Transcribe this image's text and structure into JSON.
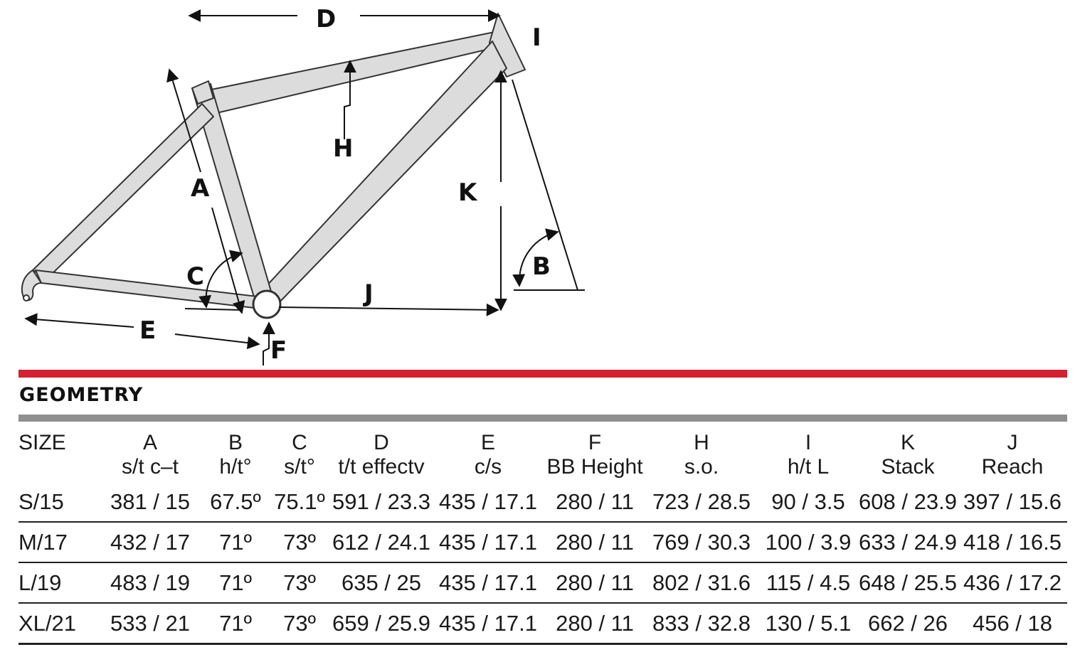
{
  "diagram": {
    "labels": {
      "A": "A",
      "B": "B",
      "C": "C",
      "D": "D",
      "E": "E",
      "F": "F",
      "H": "H",
      "I": "I",
      "J": "J",
      "K": "K"
    }
  },
  "section_title": "GEOMETRY",
  "colors": {
    "red_rule": "#d42030",
    "gray_rule": "#8f8f8f",
    "frame_fill": "#dcdcdc",
    "frame_stroke": "#333333"
  },
  "table": {
    "headers": [
      {
        "top": "SIZE",
        "bottom": ""
      },
      {
        "top": "A",
        "bottom": "s/t c–t"
      },
      {
        "top": "B",
        "bottom": "h/t°"
      },
      {
        "top": "C",
        "bottom": "s/t°"
      },
      {
        "top": "D",
        "bottom": "t/t effectv"
      },
      {
        "top": "E",
        "bottom": "c/s"
      },
      {
        "top": "F",
        "bottom": "BB Height"
      },
      {
        "top": "H",
        "bottom": "s.o."
      },
      {
        "top": "I",
        "bottom": "h/t L"
      },
      {
        "top": "K",
        "bottom": "Stack"
      },
      {
        "top": "J",
        "bottom": "Reach"
      }
    ],
    "rows": [
      [
        "S/15",
        "381 / 15",
        "67.5º",
        "75.1º",
        "591 / 23.3",
        "435 / 17.1",
        "280 / 11",
        "723 / 28.5",
        "90 / 3.5",
        "608 / 23.9",
        "397 / 15.6"
      ],
      [
        "M/17",
        "432 / 17",
        "71º",
        "73º",
        "612 / 24.1",
        "435 / 17.1",
        "280 / 11",
        "769 / 30.3",
        "100 / 3.9",
        "633 / 24.9",
        "418 / 16.5"
      ],
      [
        "L/19",
        "483 / 19",
        "71º",
        "73º",
        "635 / 25",
        "435 / 17.1",
        "280 / 11",
        "802 / 31.6",
        "115 / 4.5",
        "648 / 25.5",
        "436 / 17.2"
      ],
      [
        "XL/21",
        "533 / 21",
        "71º",
        "73º",
        "659 / 25.9",
        "435 / 17.1",
        "280 / 11",
        "833 / 32.8",
        "130 / 5.1",
        "662 / 26",
        "456 / 18"
      ]
    ]
  }
}
